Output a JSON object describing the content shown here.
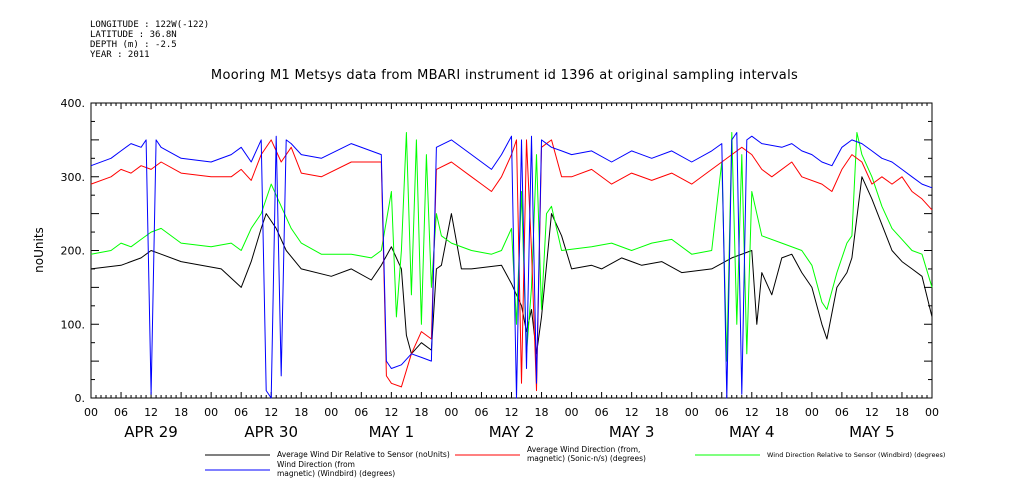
{
  "header": {
    "metadata": [
      "LONGITUDE : 122W(-122)",
      "LATITUDE : 36.8N",
      "DEPTH (m) : -2.5",
      "YEAR : 2011"
    ],
    "title": "Mooring M1 Metsys data from MBARI instrument id 1396 at original sampling intervals"
  },
  "chart_data": {
    "type": "line",
    "title": "Mooring M1 Metsys data from MBARI instrument id 1396 at original sampling intervals",
    "ylabel": "noUnits",
    "xlabel": "",
    "ylim": [
      0,
      400
    ],
    "yticks": [
      0,
      100,
      200,
      300,
      400
    ],
    "ytick_labels": [
      "0.",
      "100.",
      "200.",
      "300.",
      "400."
    ],
    "xlim_hours": [
      0,
      168
    ],
    "xtick_labels": [
      "00",
      "06",
      "12",
      "18",
      "00",
      "06",
      "12",
      "18",
      "00",
      "06",
      "12",
      "18",
      "00",
      "06",
      "12",
      "18",
      "00",
      "06",
      "12",
      "18",
      "00",
      "06",
      "12",
      "18",
      "00",
      "06",
      "12",
      "18",
      "00"
    ],
    "day_labels": [
      "APR 29",
      "APR 30",
      "MAY  1",
      "MAY  2",
      "MAY  3",
      "MAY  4",
      "MAY  5"
    ],
    "grid": false,
    "legend_position": "bottom",
    "series": [
      {
        "name": "Average Wind Dir Relative to Sensor (noUnits)",
        "color": "#000000",
        "points": [
          [
            0,
            175
          ],
          [
            6,
            180
          ],
          [
            10,
            190
          ],
          [
            12,
            200
          ],
          [
            14,
            195
          ],
          [
            18,
            185
          ],
          [
            22,
            180
          ],
          [
            26,
            175
          ],
          [
            30,
            150
          ],
          [
            32,
            185
          ],
          [
            34,
            230
          ],
          [
            35,
            250
          ],
          [
            37,
            230
          ],
          [
            39,
            200
          ],
          [
            42,
            175
          ],
          [
            48,
            165
          ],
          [
            52,
            175
          ],
          [
            56,
            160
          ],
          [
            58,
            180
          ],
          [
            60,
            205
          ],
          [
            62,
            175
          ],
          [
            63,
            85
          ],
          [
            64,
            60
          ],
          [
            66,
            75
          ],
          [
            68,
            65
          ],
          [
            69,
            175
          ],
          [
            70,
            180
          ],
          [
            72,
            250
          ],
          [
            74,
            175
          ],
          [
            76,
            175
          ],
          [
            82,
            180
          ],
          [
            84,
            155
          ],
          [
            86,
            125
          ],
          [
            87,
            90
          ],
          [
            88,
            120
          ],
          [
            89,
            60
          ],
          [
            90,
            110
          ],
          [
            92,
            250
          ],
          [
            94,
            220
          ],
          [
            96,
            175
          ],
          [
            100,
            180
          ],
          [
            102,
            175
          ],
          [
            106,
            190
          ],
          [
            110,
            180
          ],
          [
            114,
            185
          ],
          [
            118,
            170
          ],
          [
            124,
            175
          ],
          [
            128,
            190
          ],
          [
            132,
            200
          ],
          [
            133,
            100
          ],
          [
            134,
            170
          ],
          [
            136,
            140
          ],
          [
            138,
            190
          ],
          [
            140,
            195
          ],
          [
            142,
            170
          ],
          [
            144,
            150
          ],
          [
            146,
            100
          ],
          [
            147,
            80
          ],
          [
            149,
            150
          ],
          [
            151,
            170
          ],
          [
            152,
            190
          ],
          [
            154,
            300
          ],
          [
            156,
            270
          ],
          [
            160,
            200
          ],
          [
            162,
            185
          ],
          [
            164,
            175
          ],
          [
            166,
            165
          ],
          [
            168,
            110
          ]
        ]
      },
      {
        "name": "Average Wind Direction (from, magnetic) (Sonic-n/s) (degrees)",
        "color": "#ff0000",
        "points": [
          [
            0,
            290
          ],
          [
            4,
            300
          ],
          [
            6,
            310
          ],
          [
            8,
            305
          ],
          [
            10,
            315
          ],
          [
            12,
            310
          ],
          [
            14,
            320
          ],
          [
            18,
            305
          ],
          [
            24,
            300
          ],
          [
            28,
            300
          ],
          [
            30,
            310
          ],
          [
            32,
            295
          ],
          [
            34,
            330
          ],
          [
            36,
            350
          ],
          [
            38,
            320
          ],
          [
            40,
            340
          ],
          [
            42,
            305
          ],
          [
            46,
            300
          ],
          [
            52,
            320
          ],
          [
            58,
            320
          ],
          [
            59,
            30
          ],
          [
            60,
            20
          ],
          [
            62,
            15
          ],
          [
            64,
            60
          ],
          [
            66,
            90
          ],
          [
            68,
            80
          ],
          [
            69,
            310
          ],
          [
            72,
            320
          ],
          [
            76,
            300
          ],
          [
            78,
            290
          ],
          [
            80,
            280
          ],
          [
            82,
            300
          ],
          [
            84,
            330
          ],
          [
            85,
            350
          ],
          [
            86,
            20
          ],
          [
            87,
            350
          ],
          [
            88,
            200
          ],
          [
            89,
            10
          ],
          [
            90,
            340
          ],
          [
            92,
            350
          ],
          [
            94,
            300
          ],
          [
            96,
            300
          ],
          [
            100,
            310
          ],
          [
            104,
            290
          ],
          [
            108,
            305
          ],
          [
            112,
            295
          ],
          [
            116,
            305
          ],
          [
            120,
            290
          ],
          [
            124,
            310
          ],
          [
            126,
            320
          ],
          [
            128,
            330
          ],
          [
            130,
            340
          ],
          [
            132,
            330
          ],
          [
            134,
            310
          ],
          [
            136,
            300
          ],
          [
            140,
            320
          ],
          [
            142,
            300
          ],
          [
            146,
            290
          ],
          [
            148,
            280
          ],
          [
            150,
            310
          ],
          [
            152,
            330
          ],
          [
            154,
            320
          ],
          [
            156,
            290
          ],
          [
            158,
            300
          ],
          [
            160,
            290
          ],
          [
            162,
            300
          ],
          [
            164,
            280
          ],
          [
            166,
            270
          ],
          [
            168,
            255
          ]
        ]
      },
      {
        "name": "Wind Direction Relative to Sensor (Windbird) (degrees)",
        "color": "#00ff00",
        "points": [
          [
            0,
            195
          ],
          [
            4,
            200
          ],
          [
            6,
            210
          ],
          [
            8,
            205
          ],
          [
            10,
            215
          ],
          [
            12,
            225
          ],
          [
            14,
            230
          ],
          [
            18,
            210
          ],
          [
            24,
            205
          ],
          [
            28,
            210
          ],
          [
            30,
            200
          ],
          [
            32,
            230
          ],
          [
            34,
            250
          ],
          [
            36,
            290
          ],
          [
            38,
            260
          ],
          [
            40,
            230
          ],
          [
            42,
            210
          ],
          [
            46,
            195
          ],
          [
            52,
            195
          ],
          [
            56,
            190
          ],
          [
            58,
            200
          ],
          [
            60,
            280
          ],
          [
            61,
            110
          ],
          [
            62,
            200
          ],
          [
            63,
            360
          ],
          [
            64,
            140
          ],
          [
            65,
            350
          ],
          [
            66,
            100
          ],
          [
            67,
            330
          ],
          [
            68,
            150
          ],
          [
            69,
            250
          ],
          [
            70,
            220
          ],
          [
            72,
            210
          ],
          [
            76,
            200
          ],
          [
            80,
            195
          ],
          [
            82,
            200
          ],
          [
            84,
            230
          ],
          [
            85,
            100
          ],
          [
            86,
            280
          ],
          [
            87,
            60
          ],
          [
            88,
            150
          ],
          [
            89,
            330
          ],
          [
            90,
            120
          ],
          [
            91,
            250
          ],
          [
            92,
            260
          ],
          [
            94,
            200
          ],
          [
            100,
            205
          ],
          [
            104,
            210
          ],
          [
            108,
            200
          ],
          [
            112,
            210
          ],
          [
            116,
            215
          ],
          [
            120,
            195
          ],
          [
            124,
            200
          ],
          [
            126,
            320
          ],
          [
            127,
            50
          ],
          [
            128,
            360
          ],
          [
            129,
            100
          ],
          [
            130,
            330
          ],
          [
            131,
            60
          ],
          [
            132,
            280
          ],
          [
            134,
            220
          ],
          [
            138,
            210
          ],
          [
            142,
            200
          ],
          [
            144,
            180
          ],
          [
            146,
            130
          ],
          [
            147,
            120
          ],
          [
            149,
            170
          ],
          [
            151,
            210
          ],
          [
            152,
            220
          ],
          [
            153,
            360
          ],
          [
            154,
            330
          ],
          [
            156,
            300
          ],
          [
            158,
            260
          ],
          [
            160,
            230
          ],
          [
            162,
            215
          ],
          [
            164,
            200
          ],
          [
            166,
            195
          ],
          [
            168,
            150
          ]
        ]
      },
      {
        "name": "Wind Direction (from, magnetic) (Windbird) (degrees)",
        "color": "#0000ff",
        "points": [
          [
            0,
            315
          ],
          [
            4,
            325
          ],
          [
            6,
            335
          ],
          [
            8,
            345
          ],
          [
            10,
            340
          ],
          [
            11,
            350
          ],
          [
            12,
            5
          ],
          [
            13,
            350
          ],
          [
            14,
            340
          ],
          [
            18,
            325
          ],
          [
            24,
            320
          ],
          [
            28,
            330
          ],
          [
            30,
            340
          ],
          [
            32,
            320
          ],
          [
            34,
            350
          ],
          [
            35,
            10
          ],
          [
            36,
            0
          ],
          [
            37,
            355
          ],
          [
            38,
            30
          ],
          [
            39,
            350
          ],
          [
            40,
            345
          ],
          [
            42,
            330
          ],
          [
            46,
            325
          ],
          [
            52,
            345
          ],
          [
            58,
            330
          ],
          [
            59,
            50
          ],
          [
            60,
            40
          ],
          [
            62,
            45
          ],
          [
            64,
            60
          ],
          [
            66,
            55
          ],
          [
            68,
            50
          ],
          [
            69,
            340
          ],
          [
            72,
            350
          ],
          [
            76,
            330
          ],
          [
            80,
            310
          ],
          [
            82,
            330
          ],
          [
            84,
            355
          ],
          [
            85,
            0
          ],
          [
            86,
            350
          ],
          [
            87,
            40
          ],
          [
            88,
            355
          ],
          [
            89,
            20
          ],
          [
            90,
            350
          ],
          [
            92,
            340
          ],
          [
            94,
            335
          ],
          [
            96,
            330
          ],
          [
            100,
            335
          ],
          [
            104,
            320
          ],
          [
            108,
            335
          ],
          [
            112,
            325
          ],
          [
            116,
            335
          ],
          [
            120,
            320
          ],
          [
            124,
            335
          ],
          [
            126,
            345
          ],
          [
            127,
            0
          ],
          [
            128,
            350
          ],
          [
            129,
            360
          ],
          [
            130,
            5
          ],
          [
            131,
            350
          ],
          [
            132,
            355
          ],
          [
            134,
            345
          ],
          [
            138,
            340
          ],
          [
            140,
            345
          ],
          [
            142,
            335
          ],
          [
            144,
            330
          ],
          [
            146,
            320
          ],
          [
            148,
            315
          ],
          [
            150,
            340
          ],
          [
            152,
            350
          ],
          [
            154,
            345
          ],
          [
            156,
            335
          ],
          [
            158,
            325
          ],
          [
            160,
            320
          ],
          [
            162,
            310
          ],
          [
            164,
            300
          ],
          [
            166,
            290
          ],
          [
            168,
            285
          ]
        ]
      }
    ]
  }
}
